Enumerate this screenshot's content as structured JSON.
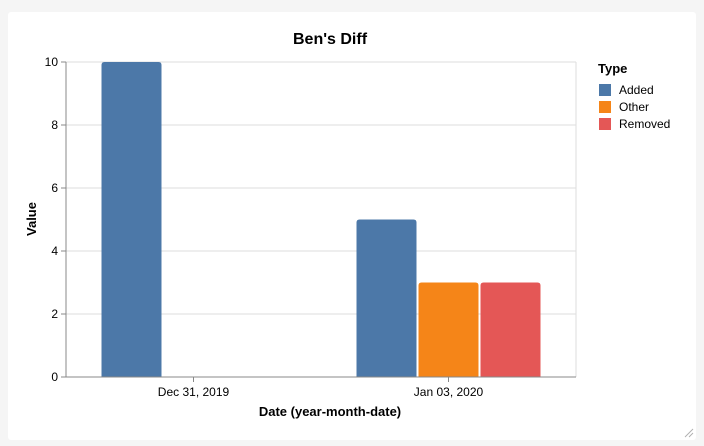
{
  "chart_data": {
    "type": "bar",
    "title": "Ben's Diff",
    "xlabel": "Date (year-month-date)",
    "ylabel": "Value",
    "ylim": [
      0,
      10
    ],
    "y_ticks": [
      "0",
      "2",
      "4",
      "6",
      "8",
      "10"
    ],
    "grid": true,
    "categories": [
      "Dec 31, 2019",
      "Jan 03, 2020"
    ],
    "legend": {
      "title": "Type",
      "position": "right"
    },
    "series": [
      {
        "name": "Added",
        "color": "#4c78a8",
        "values": [
          10,
          5
        ]
      },
      {
        "name": "Other",
        "color": "#f58518",
        "values": [
          0,
          3
        ]
      },
      {
        "name": "Removed",
        "color": "#e45756",
        "values": [
          0,
          3
        ]
      }
    ]
  }
}
